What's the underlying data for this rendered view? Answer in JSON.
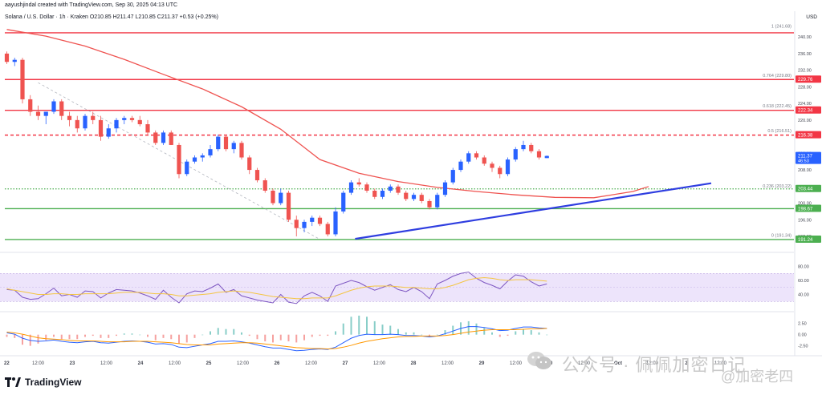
{
  "header": {
    "credit": "aayushjindal created with TradingView.com, Sep 30, 2025 04:13 UTC",
    "symbol_line": "Solana / U.S. Dollar · 1h · Kraken  O210.85  H211.47  L210.85  C211.37  +0.53 (+0.25%)",
    "currency": "USD"
  },
  "branding": {
    "name": "TradingView"
  },
  "watermark": {
    "text": "公众号 · 佩佩加密日记",
    "secondary": "@加密老四"
  },
  "colors": {
    "up": "#2962ff",
    "down": "#ef5350",
    "ma": "#ef5350",
    "resistance": "#f23645",
    "support": "#4caf50",
    "trendline": "#2f3ee0",
    "rsi": "#7e57c2",
    "rsi_ma": "#f4c542"
  },
  "chart_data": [
    {
      "type": "candlestick",
      "title": "Solana / U.S. Dollar · 1h · Kraken",
      "ohlc_last": {
        "open": 210.85,
        "high": 211.47,
        "low": 210.85,
        "close": 211.37,
        "change": "+0.53 (+0.25%)"
      },
      "x_ticks": [
        "22",
        "12:00",
        "23",
        "12:00",
        "24",
        "12:00",
        "25",
        "12:00",
        "26",
        "12:00",
        "27",
        "12:00",
        "28",
        "12:00",
        "29",
        "12:00",
        "30",
        "12:00",
        "Oct",
        "12:00",
        "2",
        "12:00"
      ],
      "y_ticks": [
        "240.00",
        "236.00",
        "232.00",
        "228.00",
        "224.00",
        "220.00",
        "216.00",
        "212.00",
        "208.00",
        "204.00",
        "200.00",
        "196.00",
        "192.00"
      ],
      "ylim": [
        189.5,
        243.5
      ],
      "price_labels": [
        {
          "text": "229.76",
          "value": 229.76,
          "kind": "resistance"
        },
        {
          "text": "222.34",
          "value": 222.34,
          "kind": "resistance"
        },
        {
          "text": "216.38",
          "value": 216.38,
          "kind": "resistance"
        },
        {
          "text": "211.37",
          "value": 211.37,
          "kind": "last",
          "sub": "46:53"
        },
        {
          "text": "203.44",
          "value": 203.44,
          "kind": "support"
        },
        {
          "text": "198.67",
          "value": 198.67,
          "kind": "support"
        },
        {
          "text": "191.24",
          "value": 191.24,
          "kind": "support"
        }
      ],
      "horizontal_lines": [
        {
          "value": 241.0,
          "kind": "resistance",
          "style": "solid"
        },
        {
          "value": 229.76,
          "kind": "resistance",
          "style": "solid"
        },
        {
          "value": 222.34,
          "kind": "resistance",
          "style": "solid"
        },
        {
          "value": 216.38,
          "kind": "resistance",
          "style": "dashed"
        },
        {
          "value": 203.44,
          "kind": "support",
          "style": "dotted"
        },
        {
          "value": 198.67,
          "kind": "support",
          "style": "solid"
        },
        {
          "value": 191.24,
          "kind": "support",
          "style": "solid"
        }
      ],
      "fibonacci": [
        {
          "text": "1 (241.68)",
          "value": 241.68
        },
        {
          "text": "0.764 (229.80)",
          "value": 229.8
        },
        {
          "text": "0.618 (222.45)",
          "value": 222.45
        },
        {
          "text": "0.5 (216.51)",
          "value": 216.51
        },
        {
          "text": "0.236 (203.22)",
          "value": 203.22
        },
        {
          "text": "0 (191.34)",
          "value": 191.34
        }
      ],
      "trendline": {
        "from": {
          "x": 44.5,
          "y": 191.4
        },
        "to": {
          "x": 90.0,
          "y": 204.8
        }
      },
      "fib_connector": {
        "from": {
          "x": 4.0,
          "y": 229.0
        },
        "to": {
          "x": 40.0,
          "y": 191.3
        }
      },
      "moving_average": {
        "x": [
          0,
          5,
          10,
          15,
          20,
          25,
          30,
          35,
          40,
          45,
          50,
          55,
          60,
          65,
          70,
          75,
          80,
          82
        ],
        "y": [
          241.8,
          240.2,
          237.8,
          234.6,
          231.0,
          227.5,
          223.2,
          217.8,
          210.5,
          207.2,
          205.2,
          203.8,
          202.8,
          202.0,
          201.4,
          201.3,
          202.8,
          204.0
        ]
      },
      "candles": [
        [
          0,
          236.0,
          236.5,
          233.5,
          234.0
        ],
        [
          1,
          234.0,
          235.0,
          233.0,
          234.5
        ],
        [
          2,
          234.5,
          235.0,
          224.0,
          225.0
        ],
        [
          3,
          225.0,
          226.0,
          221.0,
          222.0
        ],
        [
          4,
          222.0,
          223.5,
          220.0,
          221.0
        ],
        [
          5,
          221.0,
          222.0,
          219.0,
          222.0
        ],
        [
          6,
          222.0,
          225.0,
          221.5,
          224.5
        ],
        [
          7,
          224.5,
          225.0,
          220.0,
          221.0
        ],
        [
          8,
          221.0,
          222.0,
          218.5,
          220.0
        ],
        [
          9,
          220.0,
          221.0,
          217.0,
          218.0
        ],
        [
          10,
          218.0,
          221.5,
          217.5,
          221.0
        ],
        [
          11,
          221.0,
          222.0,
          219.0,
          220.0
        ],
        [
          12,
          220.0,
          221.0,
          215.0,
          216.0
        ],
        [
          13,
          216.0,
          219.0,
          215.5,
          218.0
        ],
        [
          14,
          218.0,
          220.5,
          217.0,
          220.0
        ],
        [
          15,
          220.0,
          221.0,
          219.0,
          220.5
        ],
        [
          16,
          220.5,
          221.0,
          219.5,
          220.0
        ],
        [
          17,
          220.0,
          221.0,
          218.5,
          219.0
        ],
        [
          18,
          219.0,
          220.0,
          216.5,
          217.0
        ],
        [
          19,
          217.0,
          217.5,
          214.0,
          214.5
        ],
        [
          20,
          214.5,
          217.5,
          214.0,
          217.0
        ],
        [
          21,
          217.0,
          217.5,
          214.0,
          214.0
        ],
        [
          22,
          214.0,
          214.5,
          206.0,
          207.0
        ],
        [
          23,
          207.0,
          210.5,
          206.5,
          210.0
        ],
        [
          24,
          210.0,
          211.5,
          209.5,
          211.0
        ],
        [
          25,
          211.0,
          212.0,
          210.0,
          211.5
        ],
        [
          26,
          211.5,
          214.0,
          211.0,
          213.0
        ],
        [
          27,
          213.0,
          216.5,
          212.5,
          216.0
        ],
        [
          28,
          216.0,
          216.5,
          212.5,
          213.0
        ],
        [
          29,
          213.0,
          215.0,
          212.0,
          214.5
        ],
        [
          30,
          214.5,
          215.0,
          210.5,
          211.0
        ],
        [
          31,
          211.0,
          211.5,
          207.0,
          208.0
        ],
        [
          32,
          208.0,
          208.5,
          205.0,
          205.5
        ],
        [
          33,
          205.5,
          206.0,
          202.5,
          203.0
        ],
        [
          34,
          203.0,
          203.5,
          199.5,
          200.0
        ],
        [
          35,
          200.0,
          203.5,
          199.5,
          202.5
        ],
        [
          36,
          202.5,
          203.0,
          195.5,
          196.0
        ],
        [
          37,
          196.0,
          197.0,
          192.0,
          194.0
        ],
        [
          38,
          194.0,
          196.0,
          193.0,
          195.5
        ],
        [
          39,
          195.5,
          197.0,
          194.5,
          196.5
        ],
        [
          40,
          196.5,
          197.0,
          194.5,
          195.0
        ],
        [
          41,
          195.0,
          195.5,
          192.0,
          192.5
        ],
        [
          42,
          192.5,
          199.0,
          192.0,
          198.0
        ],
        [
          43,
          198.0,
          203.0,
          197.5,
          202.5
        ],
        [
          44,
          202.5,
          205.5,
          202.0,
          205.0
        ],
        [
          45,
          205.0,
          206.0,
          204.0,
          204.5
        ],
        [
          46,
          204.5,
          205.0,
          202.5,
          203.0
        ],
        [
          47,
          203.0,
          203.5,
          201.0,
          201.5
        ],
        [
          48,
          201.5,
          203.5,
          201.0,
          203.0
        ],
        [
          49,
          203.0,
          204.5,
          202.5,
          204.0
        ],
        [
          50,
          204.0,
          204.5,
          202.0,
          202.5
        ],
        [
          51,
          202.5,
          203.0,
          200.5,
          201.0
        ],
        [
          52,
          201.0,
          202.5,
          200.5,
          202.0
        ],
        [
          53,
          202.0,
          202.5,
          200.0,
          200.5
        ],
        [
          54,
          200.5,
          201.0,
          198.5,
          199.0
        ],
        [
          55,
          199.0,
          202.5,
          198.5,
          202.0
        ],
        [
          56,
          202.0,
          205.5,
          201.5,
          205.0
        ],
        [
          57,
          205.0,
          208.5,
          204.5,
          208.0
        ],
        [
          58,
          208.0,
          210.5,
          207.5,
          210.0
        ],
        [
          59,
          210.0,
          212.5,
          209.5,
          212.0
        ],
        [
          60,
          212.0,
          212.5,
          210.5,
          211.0
        ],
        [
          61,
          211.0,
          211.5,
          209.0,
          209.5
        ],
        [
          62,
          209.5,
          210.0,
          207.5,
          208.5
        ],
        [
          63,
          208.5,
          209.0,
          206.0,
          207.0
        ],
        [
          64,
          207.0,
          211.0,
          206.5,
          210.5
        ],
        [
          65,
          210.5,
          213.5,
          210.0,
          213.0
        ],
        [
          66,
          213.0,
          215.0,
          212.5,
          214.0
        ],
        [
          67,
          214.0,
          214.5,
          212.0,
          212.5
        ],
        [
          68,
          212.5,
          213.0,
          210.5,
          211.0
        ],
        [
          69,
          210.85,
          211.47,
          210.85,
          211.37
        ]
      ]
    },
    {
      "type": "line",
      "title": "RSI",
      "y_ticks": [
        "80.00",
        "60.00",
        "40.00"
      ],
      "ylim": [
        20,
        92
      ],
      "band": [
        30,
        70
      ],
      "series": [
        {
          "role": "rsi",
          "values": [
            47,
            46,
            36,
            33,
            34,
            41,
            49,
            38,
            40,
            36,
            45,
            44,
            35,
            42,
            47,
            46,
            45,
            42,
            38,
            33,
            46,
            36,
            28,
            41,
            45,
            44,
            49,
            55,
            43,
            47,
            38,
            35,
            32,
            30,
            28,
            40,
            29,
            27,
            38,
            43,
            38,
            30,
            52,
            56,
            60,
            57,
            51,
            46,
            50,
            54,
            47,
            44,
            50,
            44,
            34,
            55,
            60,
            66,
            70,
            72,
            63,
            57,
            53,
            48,
            59,
            68,
            66,
            58,
            52,
            55
          ]
        },
        {
          "role": "rsi_ma",
          "values": [
            48,
            46,
            44,
            42,
            40,
            40,
            41,
            41,
            40,
            40,
            41,
            41,
            41,
            41,
            42,
            43,
            43,
            43,
            42,
            41,
            41,
            40,
            38,
            38,
            39,
            40,
            41,
            43,
            44,
            45,
            44,
            43,
            41,
            39,
            37,
            36,
            35,
            34,
            34,
            35,
            35,
            35,
            38,
            42,
            46,
            49,
            51,
            52,
            52,
            52,
            51,
            50,
            50,
            49,
            48,
            48,
            50,
            53,
            57,
            61,
            63,
            64,
            63,
            61,
            60,
            61,
            61,
            61,
            60,
            59
          ]
        }
      ]
    },
    {
      "type": "line",
      "title": "MACD",
      "y_ticks": [
        "2.50",
        "0.00",
        "-2.50"
      ],
      "ylim": [
        -4,
        4.6
      ],
      "series": [
        {
          "role": "macd",
          "values": [
            0.4,
            0.1,
            -0.8,
            -1.3,
            -1.5,
            -1.4,
            -1.2,
            -1.5,
            -1.7,
            -1.8,
            -1.6,
            -1.5,
            -1.8,
            -1.9,
            -1.7,
            -1.5,
            -1.4,
            -1.5,
            -1.7,
            -2.1,
            -2.0,
            -2.2,
            -2.8,
            -2.9,
            -2.6,
            -2.3,
            -2.0,
            -1.5,
            -1.5,
            -1.4,
            -1.6,
            -1.9,
            -2.3,
            -2.7,
            -3.0,
            -3.0,
            -3.3,
            -3.6,
            -3.5,
            -3.3,
            -3.2,
            -3.3,
            -2.8,
            -1.8,
            -0.8,
            -0.2,
            0.1,
            0.0,
            0.0,
            0.1,
            0.0,
            -0.2,
            -0.2,
            -0.3,
            -0.5,
            -0.3,
            0.2,
            0.8,
            1.4,
            1.8,
            1.8,
            1.6,
            1.3,
            0.9,
            1.0,
            1.4,
            1.7,
            1.7,
            1.5,
            1.4
          ]
        },
        {
          "role": "signal",
          "values": [
            0.6,
            0.4,
            0.1,
            -0.3,
            -0.7,
            -0.9,
            -1.0,
            -1.1,
            -1.3,
            -1.4,
            -1.4,
            -1.4,
            -1.5,
            -1.6,
            -1.6,
            -1.6,
            -1.5,
            -1.5,
            -1.5,
            -1.6,
            -1.7,
            -1.8,
            -2.0,
            -2.2,
            -2.3,
            -2.3,
            -2.3,
            -2.1,
            -2.0,
            -1.9,
            -1.8,
            -1.8,
            -1.9,
            -2.1,
            -2.3,
            -2.5,
            -2.7,
            -2.9,
            -3.0,
            -3.1,
            -3.1,
            -3.2,
            -3.1,
            -2.8,
            -2.4,
            -1.9,
            -1.5,
            -1.2,
            -0.9,
            -0.7,
            -0.5,
            -0.4,
            -0.4,
            -0.3,
            -0.3,
            -0.3,
            -0.2,
            0.0,
            0.3,
            0.6,
            0.8,
            1.0,
            1.1,
            1.1,
            1.1,
            1.1,
            1.2,
            1.3,
            1.3,
            1.4
          ]
        }
      ]
    }
  ]
}
